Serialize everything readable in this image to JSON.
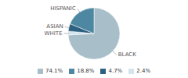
{
  "chart_data": {
    "type": "pie",
    "categories": [
      "BLACK",
      "WHITE",
      "ASIAN",
      "HISPANIC"
    ],
    "values": [
      74.1,
      2.4,
      4.7,
      18.8
    ],
    "colors": [
      "#a8bfc9",
      "#d4e5ee",
      "#2e6080",
      "#4d87a1"
    ],
    "value_labels": [
      "74.1%",
      "2.4%",
      "4.7%",
      "18.8%"
    ],
    "legend": "bottom"
  }
}
